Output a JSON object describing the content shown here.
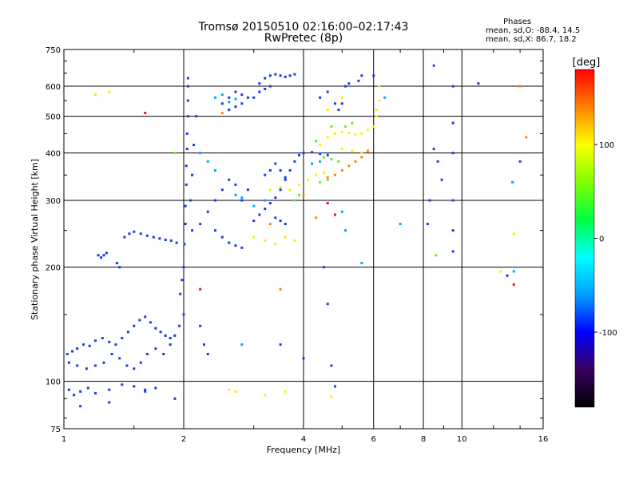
{
  "header": {
    "title_line1": "Tromsø 20150510 02:16:00–02:17:43",
    "title_line2": "RwPretec (8p)",
    "phases_heading": "Phases",
    "phases_o": "mean, sd,O: -88.4, 14.5",
    "phases_x": "mean, sd,X:  86.7, 18.2"
  },
  "chart_data": {
    "type": "scatter",
    "title": "Tromsø 20150510 02:16:00–02:17:43",
    "subtitle": "RwPretec (8p)",
    "xlabel": "Frequency [MHz]",
    "ylabel": "Stationary phase Virtual Height [km]",
    "x_scale": "log",
    "y_scale": "log",
    "xlim": [
      1,
      16
    ],
    "ylim": [
      75,
      750
    ],
    "x_ticks": [
      "1",
      "2",
      "4",
      "6",
      "8",
      "10",
      "16"
    ],
    "x_tick_values": [
      1,
      2,
      4,
      6,
      8,
      10,
      16
    ],
    "y_ticks": [
      "75",
      "100",
      "200",
      "300",
      "400",
      "500",
      "600",
      "750"
    ],
    "y_tick_values": [
      75,
      100,
      200,
      300,
      400,
      500,
      600,
      750
    ],
    "grid": true,
    "colorbar": {
      "label": "[deg]",
      "range": [
        -180,
        180
      ],
      "ticks": [
        "100",
        "0",
        "-100"
      ],
      "tick_values": [
        100,
        0,
        -100
      ],
      "colors": [
        "#000000",
        "#3a0060",
        "#0000ff",
        "#00a0ff",
        "#00ffff",
        "#00ff40",
        "#80ff00",
        "#ffff00",
        "#ff8000",
        "#ff0000"
      ]
    },
    "series": [
      {
        "color": "#1a3ce6",
        "points": [
          [
            1.02,
            118
          ],
          [
            1.05,
            120
          ],
          [
            1.08,
            122
          ],
          [
            1.12,
            125
          ],
          [
            1.16,
            124
          ],
          [
            1.2,
            128
          ],
          [
            1.25,
            130
          ],
          [
            1.3,
            127
          ],
          [
            1.35,
            125
          ],
          [
            1.4,
            130
          ],
          [
            1.45,
            135
          ],
          [
            1.5,
            140
          ],
          [
            1.55,
            145
          ],
          [
            1.6,
            148
          ],
          [
            1.65,
            143
          ],
          [
            1.7,
            138
          ],
          [
            1.75,
            135
          ],
          [
            1.8,
            132
          ],
          [
            1.85,
            130
          ],
          [
            1.9,
            132
          ],
          [
            1.95,
            140
          ],
          [
            2.0,
            150
          ],
          [
            1.03,
            112
          ],
          [
            1.08,
            110
          ],
          [
            1.14,
            108
          ],
          [
            1.2,
            110
          ],
          [
            1.26,
            112
          ],
          [
            1.32,
            118
          ],
          [
            1.38,
            115
          ],
          [
            1.44,
            110
          ],
          [
            1.5,
            108
          ],
          [
            1.56,
            112
          ],
          [
            1.62,
            118
          ],
          [
            1.7,
            122
          ],
          [
            1.78,
            118
          ],
          [
            1.85,
            125
          ],
          [
            1.03,
            95
          ],
          [
            1.06,
            92
          ],
          [
            1.1,
            94
          ],
          [
            1.15,
            96
          ],
          [
            1.2,
            93
          ],
          [
            1.3,
            95
          ],
          [
            1.4,
            98
          ],
          [
            1.5,
            97
          ],
          [
            1.6,
            94
          ],
          [
            1.7,
            96
          ],
          [
            1.22,
            215
          ],
          [
            1.24,
            212
          ],
          [
            1.26,
            215
          ],
          [
            1.28,
            218
          ],
          [
            1.36,
            205
          ],
          [
            1.38,
            200
          ],
          [
            1.42,
            240
          ],
          [
            1.46,
            245
          ],
          [
            1.5,
            248
          ],
          [
            1.56,
            245
          ],
          [
            1.62,
            242
          ],
          [
            1.68,
            240
          ],
          [
            1.74,
            238
          ],
          [
            1.8,
            236
          ],
          [
            1.86,
            235
          ],
          [
            1.92,
            232
          ],
          [
            1.96,
            170
          ],
          [
            1.98,
            185
          ],
          [
            2.0,
            200
          ],
          [
            2.01,
            230
          ],
          [
            2.02,
            260
          ],
          [
            2.02,
            290
          ],
          [
            2.03,
            330
          ],
          [
            2.03,
            370
          ],
          [
            2.04,
            410
          ],
          [
            2.04,
            450
          ],
          [
            2.05,
            500
          ],
          [
            2.05,
            550
          ],
          [
            2.05,
            600
          ],
          [
            2.05,
            630
          ],
          [
            2.08,
            300
          ],
          [
            2.1,
            350
          ],
          [
            2.12,
            420
          ],
          [
            2.15,
            500
          ],
          [
            2.1,
            250
          ],
          [
            2.2,
            260
          ],
          [
            2.3,
            280
          ],
          [
            2.4,
            300
          ],
          [
            2.5,
            320
          ],
          [
            2.6,
            340
          ],
          [
            2.7,
            330
          ],
          [
            2.8,
            300
          ],
          [
            2.9,
            320
          ],
          [
            2.4,
            250
          ],
          [
            2.5,
            240
          ],
          [
            2.6,
            232
          ],
          [
            2.7,
            228
          ],
          [
            2.8,
            225
          ],
          [
            2.5,
            540
          ],
          [
            2.6,
            560
          ],
          [
            2.7,
            580
          ],
          [
            2.8,
            570
          ],
          [
            2.9,
            560
          ],
          [
            2.6,
            520
          ],
          [
            2.7,
            530
          ],
          [
            2.8,
            540
          ],
          [
            3.1,
            610
          ],
          [
            3.2,
            630
          ],
          [
            3.3,
            640
          ],
          [
            3.4,
            645
          ],
          [
            3.5,
            640
          ],
          [
            3.6,
            635
          ],
          [
            3.7,
            640
          ],
          [
            3.8,
            645
          ],
          [
            3.0,
            560
          ],
          [
            3.1,
            580
          ],
          [
            3.2,
            590
          ],
          [
            3.3,
            600
          ],
          [
            3.0,
            265
          ],
          [
            3.1,
            275
          ],
          [
            3.2,
            285
          ],
          [
            3.3,
            295
          ],
          [
            3.4,
            305
          ],
          [
            3.5,
            320
          ],
          [
            3.6,
            340
          ],
          [
            3.7,
            360
          ],
          [
            3.8,
            380
          ],
          [
            3.9,
            395
          ],
          [
            4.0,
            400
          ],
          [
            4.2,
            402
          ],
          [
            4.4,
            398
          ],
          [
            4.6,
            395
          ],
          [
            3.2,
            350
          ],
          [
            3.3,
            360
          ],
          [
            3.4,
            375
          ],
          [
            3.5,
            360
          ],
          [
            3.6,
            345
          ],
          [
            3.4,
            270
          ],
          [
            3.5,
            265
          ],
          [
            3.6,
            260
          ],
          [
            4.5,
            200
          ],
          [
            4.6,
            160
          ],
          [
            4.7,
            110
          ],
          [
            4.8,
            97
          ],
          [
            4.9,
            520
          ],
          [
            5.0,
            540
          ],
          [
            5.1,
            600
          ],
          [
            5.2,
            610
          ],
          [
            5.5,
            620
          ],
          [
            5.6,
            640
          ],
          [
            6.0,
            640
          ],
          [
            4.4,
            560
          ],
          [
            4.6,
            580
          ],
          [
            4.8,
            540
          ],
          [
            8.5,
            680
          ],
          [
            9.5,
            600
          ],
          [
            9.5,
            480
          ],
          [
            9.5,
            400
          ],
          [
            9.5,
            300
          ],
          [
            9.5,
            250
          ],
          [
            9.5,
            220
          ],
          [
            8.5,
            410
          ],
          [
            8.7,
            380
          ],
          [
            8.9,
            340
          ],
          [
            8.3,
            300
          ],
          [
            8.2,
            260
          ],
          [
            11.0,
            610
          ],
          [
            13.0,
            190
          ],
          [
            14.0,
            380
          ],
          [
            2.2,
            140
          ],
          [
            2.25,
            125
          ],
          [
            2.3,
            118
          ],
          [
            3.5,
            125
          ],
          [
            4.0,
            115
          ],
          [
            1.6,
            95
          ],
          [
            1.9,
            90
          ],
          [
            1.3,
            88
          ],
          [
            1.1,
            86
          ]
        ]
      },
      {
        "color": "#00a8ff",
        "points": [
          [
            2.4,
            560
          ],
          [
            2.5,
            570
          ],
          [
            2.6,
            545
          ],
          [
            2.7,
            555
          ],
          [
            2.2,
            400
          ],
          [
            2.3,
            380
          ],
          [
            2.4,
            360
          ],
          [
            2.7,
            310
          ],
          [
            2.8,
            305
          ],
          [
            3.0,
            290
          ],
          [
            3.2,
            300
          ],
          [
            4.2,
            375
          ],
          [
            4.4,
            380
          ],
          [
            5.0,
            280
          ],
          [
            5.1,
            250
          ],
          [
            5.6,
            205
          ],
          [
            7.0,
            260
          ],
          [
            13.5,
            195
          ],
          [
            13.4,
            335
          ],
          [
            2.8,
            125
          ],
          [
            6.4,
            560
          ]
        ]
      },
      {
        "color": "#ffee00",
        "points": [
          [
            4.4,
            420
          ],
          [
            4.6,
            440
          ],
          [
            4.8,
            450
          ],
          [
            5.0,
            455
          ],
          [
            5.2,
            452
          ],
          [
            5.4,
            448
          ],
          [
            5.6,
            450
          ],
          [
            5.8,
            460
          ],
          [
            6.0,
            470
          ],
          [
            6.1,
            500
          ],
          [
            6.2,
            550
          ],
          [
            6.2,
            600
          ],
          [
            5.0,
            410
          ],
          [
            5.3,
            405
          ],
          [
            5.6,
            400
          ],
          [
            3.3,
            320
          ],
          [
            3.5,
            325
          ],
          [
            3.7,
            320
          ],
          [
            3.9,
            330
          ],
          [
            4.1,
            340
          ],
          [
            4.3,
            350
          ],
          [
            4.5,
            355
          ],
          [
            3.0,
            240
          ],
          [
            3.2,
            235
          ],
          [
            3.4,
            230
          ],
          [
            3.6,
            240
          ],
          [
            3.8,
            235
          ],
          [
            6.1,
            520
          ],
          [
            4.6,
            520
          ],
          [
            5.0,
            560
          ],
          [
            2.6,
            95
          ],
          [
            2.7,
            94
          ],
          [
            3.2,
            92
          ],
          [
            3.6,
            94
          ],
          [
            4.7,
            91
          ],
          [
            13.5,
            245
          ],
          [
            12.5,
            195
          ],
          [
            1.2,
            570
          ],
          [
            1.3,
            580
          ]
        ]
      },
      {
        "color": "#66ee22",
        "points": [
          [
            4.5,
            390
          ],
          [
            4.7,
            385
          ],
          [
            4.9,
            380
          ],
          [
            4.3,
            430
          ],
          [
            4.7,
            470
          ],
          [
            5.1,
            470
          ],
          [
            5.3,
            480
          ],
          [
            4.4,
            335
          ],
          [
            4.6,
            340
          ],
          [
            3.8,
            300
          ],
          [
            3.9,
            310
          ],
          [
            8.6,
            215
          ],
          [
            1.9,
            400
          ]
        ]
      },
      {
        "color": "#ff8800",
        "points": [
          [
            4.6,
            345
          ],
          [
            4.8,
            350
          ],
          [
            5.0,
            360
          ],
          [
            5.2,
            370
          ],
          [
            5.4,
            380
          ],
          [
            5.6,
            390
          ],
          [
            5.8,
            405
          ],
          [
            3.5,
            175
          ],
          [
            4.3,
            270
          ],
          [
            4.0,
            310
          ],
          [
            3.3,
            260
          ],
          [
            14.0,
            600
          ],
          [
            14.5,
            440
          ],
          [
            2.5,
            510
          ]
        ]
      },
      {
        "color": "#ee1111",
        "points": [
          [
            13.5,
            180
          ],
          [
            4.8,
            275
          ],
          [
            4.6,
            295
          ],
          [
            2.2,
            175
          ],
          [
            1.6,
            510
          ]
        ]
      }
    ]
  }
}
